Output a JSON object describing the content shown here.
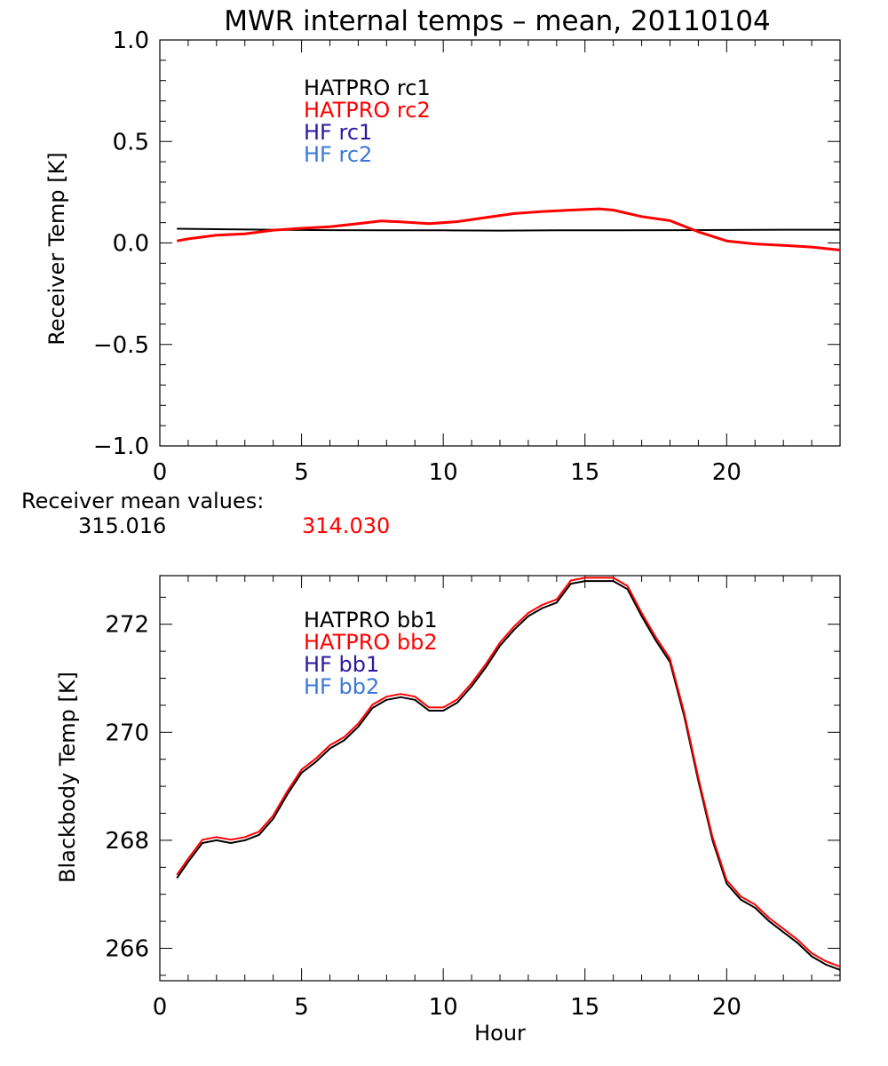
{
  "title": "MWR internal temps – mean, 20110104",
  "mean_values": {
    "label": "Receiver mean values:",
    "value1": "315.016",
    "value2": "314.030",
    "value1_color": "#000000",
    "value2_color": "#ff0000"
  },
  "colors": {
    "black": "#000000",
    "red": "#ff0000",
    "blue": "#2a1aa0",
    "lightblue": "#3c78d8"
  },
  "chart_data": [
    {
      "type": "line",
      "title": "MWR internal temps – mean, 20110104",
      "xlabel": "",
      "ylabel": "Receiver Temp [K]",
      "xlim": [
        0,
        24
      ],
      "ylim": [
        -1.0,
        1.0
      ],
      "xticks": [
        0,
        5,
        10,
        15,
        20
      ],
      "xtick_labels": [
        "0",
        "5",
        "10",
        "15",
        "20"
      ],
      "yticks": [
        -1.0,
        -0.5,
        0.0,
        0.5,
        1.0
      ],
      "ytick_labels": [
        "−1.0",
        "−0.5",
        "0.0",
        "0.5",
        "1.0"
      ],
      "legend": [
        "HATPRO rc1",
        "HATPRO rc2",
        "HF rc1",
        "HF rc2"
      ],
      "legend_colors": [
        "#000000",
        "#ff0000",
        "#2a1aa0",
        "#3c78d8"
      ],
      "series": [
        {
          "name": "HATPRO rc1",
          "color": "#000000",
          "x": [
            0.6,
            2,
            4,
            6,
            8,
            10,
            12,
            14,
            16,
            18,
            20,
            22,
            24
          ],
          "y": [
            0.07,
            0.068,
            0.065,
            0.063,
            0.062,
            0.062,
            0.061,
            0.062,
            0.062,
            0.063,
            0.064,
            0.065,
            0.065
          ]
        },
        {
          "name": "HATPRO rc2",
          "color": "#ff0000",
          "x": [
            0.6,
            1,
            2,
            3,
            4,
            5,
            6,
            7,
            7.8,
            8.5,
            9.5,
            10.5,
            11.5,
            12.5,
            13.5,
            14.5,
            15.5,
            16,
            17,
            18,
            19,
            20,
            21,
            22,
            23,
            24
          ],
          "y": [
            0.01,
            0.02,
            0.038,
            0.045,
            0.063,
            0.072,
            0.08,
            0.095,
            0.108,
            0.104,
            0.095,
            0.105,
            0.125,
            0.145,
            0.155,
            0.162,
            0.168,
            0.162,
            0.13,
            0.11,
            0.055,
            0.01,
            -0.005,
            -0.012,
            -0.02,
            -0.035
          ]
        }
      ]
    },
    {
      "type": "line",
      "title": "",
      "xlabel": "Hour",
      "ylabel": "Blackbody Temp [K]",
      "xlim": [
        0,
        24
      ],
      "ylim": [
        265.4,
        272.9
      ],
      "xticks": [
        0,
        5,
        10,
        15,
        20
      ],
      "xtick_labels": [
        "0",
        "5",
        "10",
        "15",
        "20"
      ],
      "yticks": [
        266,
        268,
        270,
        272
      ],
      "ytick_labels": [
        "266",
        "268",
        "270",
        "272"
      ],
      "legend": [
        "HATPRO bb1",
        "HATPRO bb2",
        "HF bb1",
        "HF bb2"
      ],
      "legend_colors": [
        "#000000",
        "#ff0000",
        "#2a1aa0",
        "#3c78d8"
      ],
      "series": [
        {
          "name": "HATPRO bb1",
          "color": "#000000",
          "x": [
            0.6,
            1,
            1.5,
            2,
            2.5,
            3,
            3.5,
            4,
            4.5,
            5,
            5.5,
            6,
            6.5,
            7,
            7.5,
            8,
            8.5,
            9,
            9.5,
            10,
            10.5,
            11,
            11.5,
            12,
            12.5,
            13,
            13.5,
            14,
            14.5,
            15,
            15.5,
            16,
            16.5,
            17,
            17.5,
            18,
            18.5,
            19,
            19.5,
            20,
            20.5,
            21,
            21.5,
            22,
            22.5,
            23,
            23.5,
            24
          ],
          "y": [
            267.3,
            267.6,
            267.95,
            268.0,
            267.95,
            268.0,
            268.1,
            268.4,
            268.85,
            269.25,
            269.45,
            269.7,
            269.85,
            270.1,
            270.45,
            270.6,
            270.65,
            270.6,
            270.4,
            270.4,
            270.55,
            270.85,
            271.2,
            271.6,
            271.9,
            272.15,
            272.3,
            272.4,
            272.75,
            272.8,
            272.8,
            272.8,
            272.65,
            272.15,
            271.7,
            271.3,
            270.3,
            269.1,
            268.0,
            267.2,
            266.9,
            266.75,
            266.5,
            266.3,
            266.1,
            265.85,
            265.7,
            265.6
          ]
        },
        {
          "name": "HATPRO bb2",
          "color": "#ff0000",
          "x": [
            0.6,
            1,
            1.5,
            2,
            2.5,
            3,
            3.5,
            4,
            4.5,
            5,
            5.5,
            6,
            6.5,
            7,
            7.5,
            8,
            8.5,
            9,
            9.5,
            10,
            10.5,
            11,
            11.5,
            12,
            12.5,
            13,
            13.5,
            14,
            14.5,
            15,
            15.5,
            16,
            16.5,
            17,
            17.5,
            18,
            18.5,
            19,
            19.5,
            20,
            20.5,
            21,
            21.5,
            22,
            22.5,
            23,
            23.5,
            24
          ],
          "y": [
            267.36,
            267.66,
            268.01,
            268.06,
            268.01,
            268.06,
            268.16,
            268.46,
            268.91,
            269.31,
            269.51,
            269.76,
            269.91,
            270.16,
            270.51,
            270.66,
            270.71,
            270.66,
            270.46,
            270.46,
            270.61,
            270.91,
            271.26,
            271.66,
            271.96,
            272.21,
            272.36,
            272.46,
            272.81,
            272.86,
            272.86,
            272.86,
            272.71,
            272.21,
            271.76,
            271.36,
            270.36,
            269.16,
            268.06,
            267.26,
            266.96,
            266.81,
            266.56,
            266.36,
            266.16,
            265.91,
            265.76,
            265.66
          ]
        }
      ]
    }
  ]
}
